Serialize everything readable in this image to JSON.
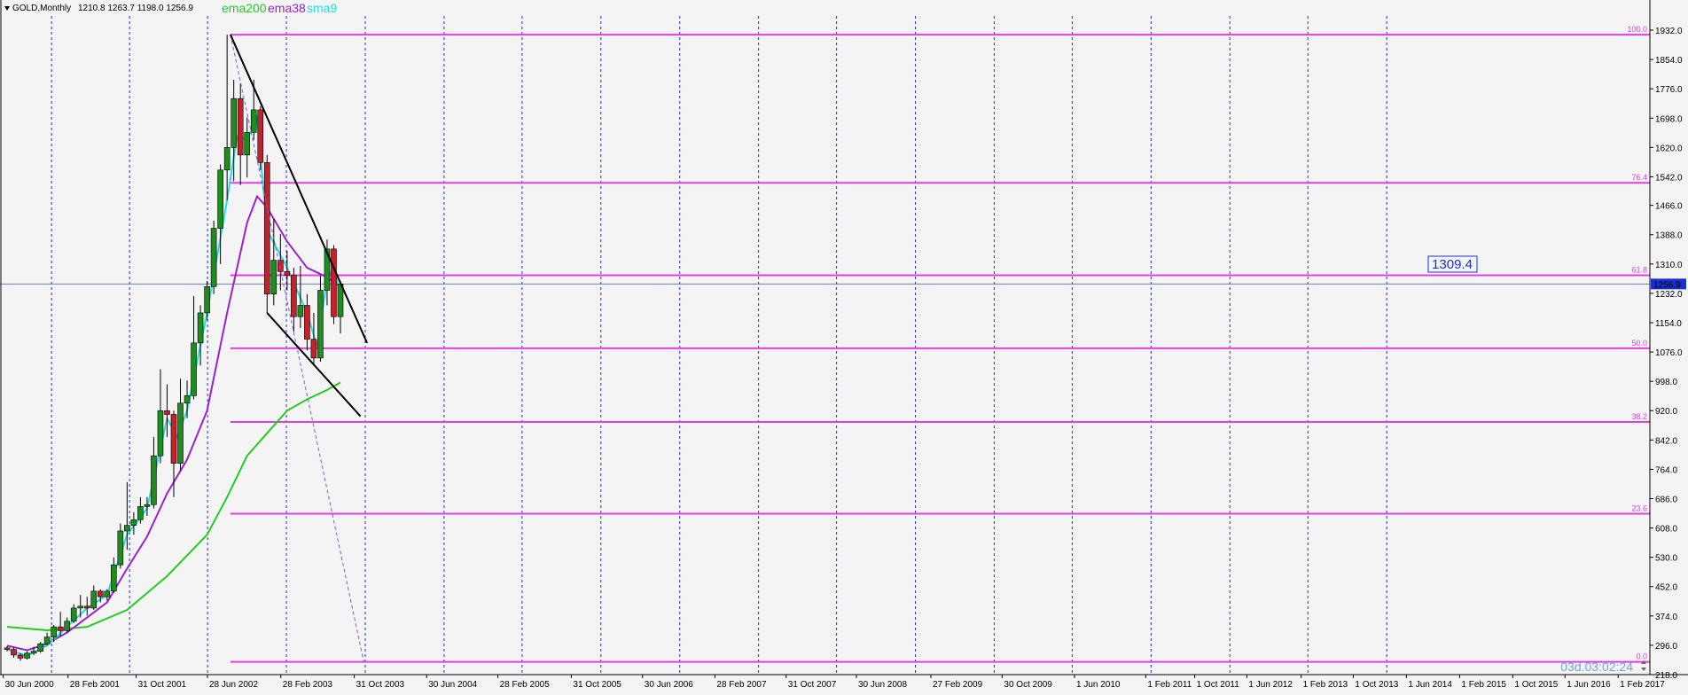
{
  "chart_data": {
    "type": "candlestick",
    "title": "GOLD,Monthly",
    "ohlc_text": "1210.8 1263.7 1198.0 1256.9",
    "legend": [
      {
        "name": "ema200",
        "color": "#22cc22"
      },
      {
        "name": "ema38",
        "color": "#9922cc"
      },
      {
        "name": "sma9",
        "color": "#22dddd"
      }
    ],
    "up_color": "#1e8c1e",
    "down_color": "#c8202a",
    "ylim": [
      218.0,
      1932.0
    ],
    "y_ticks": [
      "1932.0",
      "1854.0",
      "1776.0",
      "1698.0",
      "1620.0",
      "1542.0",
      "1466.0",
      "1388.0",
      "1310.0",
      "1232.0",
      "1154.0",
      "1076.0",
      "998.0",
      "920.0",
      "842.0",
      "764.0",
      "686.0",
      "608.0",
      "530.0",
      "452.0",
      "374.0",
      "296.0",
      "218.0"
    ],
    "x_ticks": [
      "30 Jun 2000",
      "28 Feb 2001",
      "31 Oct 2001",
      "28 Jun 2002",
      "28 Feb 2003",
      "31 Oct 2003",
      "30 Jun 2004",
      "28 Feb 2005",
      "31 Oct 2005",
      "30 Jun 2006",
      "28 Feb 2007",
      "31 Oct 2007",
      "30 Jun 2008",
      "27 Feb 2009",
      "30 Oct 2009",
      "1 Jun 2010",
      "1 Feb 2011",
      "1 Oct 2011",
      "1 Jun 2012",
      "1 Feb 2013",
      "1 Oct 2013",
      "1 Jun 2014",
      "1 Feb 2015",
      "1 Oct 2015",
      "1 Jun 2016",
      "1 Feb 2017"
    ],
    "fib_levels": [
      {
        "label": "100.0",
        "price": 1920
      },
      {
        "label": "76.4",
        "price": 1526
      },
      {
        "label": "61.8",
        "price": 1280
      },
      {
        "label": "50.0",
        "price": 1086
      },
      {
        "label": "38.2",
        "price": 890
      },
      {
        "label": "23.6",
        "price": 646
      },
      {
        "label": "0.0",
        "price": 252
      }
    ],
    "fib_color": "#e040e0",
    "current_price": "1256.9",
    "current_price_value": 1256.9,
    "callout_text": "1309.4",
    "timer_text": "03d.03:02:24",
    "trendlines": [
      {
        "x1": "2011-08",
        "y1": 1920,
        "x2": "2018-06",
        "y2": 1100
      },
      {
        "x1": "2013-06",
        "y1": 1180,
        "x2": "2018-02",
        "y2": 905
      }
    ],
    "fib_line": {
      "x1": "2011-08",
      "y1": 1920,
      "x2": "2018-04",
      "y2": 252
    },
    "grid": true,
    "candles": [
      {
        "t": "2000-06",
        "o": 289,
        "h": 294,
        "l": 280,
        "c": 285
      },
      {
        "t": "2000-10",
        "o": 285,
        "h": 290,
        "l": 263,
        "c": 270
      },
      {
        "t": "2001-02",
        "o": 270,
        "h": 275,
        "l": 255,
        "c": 262
      },
      {
        "t": "2001-06",
        "o": 262,
        "h": 280,
        "l": 258,
        "c": 275
      },
      {
        "t": "2001-10",
        "o": 275,
        "h": 292,
        "l": 270,
        "c": 280
      },
      {
        "t": "2002-02",
        "o": 280,
        "h": 305,
        "l": 276,
        "c": 300
      },
      {
        "t": "2002-06",
        "o": 300,
        "h": 330,
        "l": 296,
        "c": 318
      },
      {
        "t": "2002-10",
        "o": 318,
        "h": 350,
        "l": 305,
        "c": 345
      },
      {
        "t": "2003-02",
        "o": 345,
        "h": 385,
        "l": 320,
        "c": 335
      },
      {
        "t": "2003-06",
        "o": 335,
        "h": 370,
        "l": 330,
        "c": 360
      },
      {
        "t": "2003-10",
        "o": 360,
        "h": 405,
        "l": 355,
        "c": 395
      },
      {
        "t": "2004-02",
        "o": 395,
        "h": 430,
        "l": 370,
        "c": 400
      },
      {
        "t": "2004-06",
        "o": 400,
        "h": 425,
        "l": 375,
        "c": 395
      },
      {
        "t": "2004-10",
        "o": 395,
        "h": 455,
        "l": 390,
        "c": 440
      },
      {
        "t": "2005-02",
        "o": 440,
        "h": 445,
        "l": 410,
        "c": 425
      },
      {
        "t": "2005-06",
        "o": 425,
        "h": 445,
        "l": 415,
        "c": 440
      },
      {
        "t": "2005-10",
        "o": 440,
        "h": 530,
        "l": 435,
        "c": 510
      },
      {
        "t": "2006-02",
        "o": 510,
        "h": 620,
        "l": 500,
        "c": 600
      },
      {
        "t": "2006-06",
        "o": 600,
        "h": 730,
        "l": 550,
        "c": 615
      },
      {
        "t": "2006-10",
        "o": 615,
        "h": 650,
        "l": 590,
        "c": 630
      },
      {
        "t": "2007-02",
        "o": 630,
        "h": 690,
        "l": 620,
        "c": 665
      },
      {
        "t": "2007-06",
        "o": 665,
        "h": 690,
        "l": 640,
        "c": 670
      },
      {
        "t": "2007-10",
        "o": 670,
        "h": 850,
        "l": 660,
        "c": 800
      },
      {
        "t": "2008-02",
        "o": 800,
        "h": 1030,
        "l": 780,
        "c": 920
      },
      {
        "t": "2008-06",
        "o": 920,
        "h": 990,
        "l": 850,
        "c": 910
      },
      {
        "t": "2008-10",
        "o": 910,
        "h": 920,
        "l": 690,
        "c": 780
      },
      {
        "t": "2009-02",
        "o": 780,
        "h": 1005,
        "l": 760,
        "c": 940
      },
      {
        "t": "2009-06",
        "o": 940,
        "h": 1000,
        "l": 900,
        "c": 960
      },
      {
        "t": "2009-10",
        "o": 960,
        "h": 1225,
        "l": 950,
        "c": 1100
      },
      {
        "t": "2010-02",
        "o": 1100,
        "h": 1200,
        "l": 1040,
        "c": 1180
      },
      {
        "t": "2010-06",
        "o": 1180,
        "h": 1265,
        "l": 1160,
        "c": 1250
      },
      {
        "t": "2010-10",
        "o": 1250,
        "h": 1425,
        "l": 1230,
        "c": 1405
      },
      {
        "t": "2011-02",
        "o": 1405,
        "h": 1575,
        "l": 1310,
        "c": 1560
      },
      {
        "t": "2011-06",
        "o": 1560,
        "h": 1920,
        "l": 1480,
        "c": 1620
      },
      {
        "t": "2011-10",
        "o": 1620,
        "h": 1800,
        "l": 1530,
        "c": 1750
      },
      {
        "t": "2012-02",
        "o": 1750,
        "h": 1790,
        "l": 1520,
        "c": 1600
      },
      {
        "t": "2012-06",
        "o": 1600,
        "h": 1700,
        "l": 1540,
        "c": 1660
      },
      {
        "t": "2012-10",
        "o": 1660,
        "h": 1800,
        "l": 1640,
        "c": 1720
      },
      {
        "t": "2013-02",
        "o": 1720,
        "h": 1730,
        "l": 1560,
        "c": 1580
      },
      {
        "t": "2013-06",
        "o": 1580,
        "h": 1600,
        "l": 1180,
        "c": 1230
      },
      {
        "t": "2013-10",
        "o": 1230,
        "h": 1430,
        "l": 1200,
        "c": 1320
      },
      {
        "t": "2014-02",
        "o": 1320,
        "h": 1390,
        "l": 1240,
        "c": 1290
      },
      {
        "t": "2014-06",
        "o": 1290,
        "h": 1345,
        "l": 1240,
        "c": 1280
      },
      {
        "t": "2014-10",
        "o": 1280,
        "h": 1300,
        "l": 1130,
        "c": 1170
      },
      {
        "t": "2015-02",
        "o": 1170,
        "h": 1305,
        "l": 1140,
        "c": 1200
      },
      {
        "t": "2015-06",
        "o": 1200,
        "h": 1230,
        "l": 1080,
        "c": 1110
      },
      {
        "t": "2015-10",
        "o": 1110,
        "h": 1180,
        "l": 1045,
        "c": 1060
      },
      {
        "t": "2016-02",
        "o": 1060,
        "h": 1280,
        "l": 1050,
        "c": 1240
      },
      {
        "t": "2016-06",
        "o": 1240,
        "h": 1375,
        "l": 1200,
        "c": 1350
      },
      {
        "t": "2016-10",
        "o": 1350,
        "h": 1360,
        "l": 1150,
        "c": 1170
      },
      {
        "t": "2017-02",
        "o": 1170,
        "h": 1265,
        "l": 1125,
        "c": 1257
      }
    ],
    "ema200": [
      {
        "t": "2000-06",
        "v": 345
      },
      {
        "t": "2002-06",
        "v": 336
      },
      {
        "t": "2004-06",
        "v": 345
      },
      {
        "t": "2006-06",
        "v": 390
      },
      {
        "t": "2008-06",
        "v": 480
      },
      {
        "t": "2010-06",
        "v": 590
      },
      {
        "t": "2011-06",
        "v": 690
      },
      {
        "t": "2012-06",
        "v": 800
      },
      {
        "t": "2013-06",
        "v": 860
      },
      {
        "t": "2014-06",
        "v": 920
      },
      {
        "t": "2015-06",
        "v": 950
      },
      {
        "t": "2016-06",
        "v": 975
      },
      {
        "t": "2017-02",
        "v": 995
      }
    ],
    "ema38": [
      {
        "t": "2000-06",
        "v": 295
      },
      {
        "t": "2001-06",
        "v": 283
      },
      {
        "t": "2002-06",
        "v": 300
      },
      {
        "t": "2003-06",
        "v": 330
      },
      {
        "t": "2004-06",
        "v": 370
      },
      {
        "t": "2005-06",
        "v": 410
      },
      {
        "t": "2006-06",
        "v": 500
      },
      {
        "t": "2007-06",
        "v": 585
      },
      {
        "t": "2008-06",
        "v": 700
      },
      {
        "t": "2009-06",
        "v": 790
      },
      {
        "t": "2010-06",
        "v": 920
      },
      {
        "t": "2011-06",
        "v": 1180
      },
      {
        "t": "2012-06",
        "v": 1420
      },
      {
        "t": "2012-12",
        "v": 1490
      },
      {
        "t": "2013-06",
        "v": 1460
      },
      {
        "t": "2014-06",
        "v": 1370
      },
      {
        "t": "2015-06",
        "v": 1300
      },
      {
        "t": "2016-06",
        "v": 1275
      },
      {
        "t": "2017-02",
        "v": 1250
      }
    ],
    "sma9": [
      {
        "t": "2000-06",
        "v": 285
      },
      {
        "t": "2001-06",
        "v": 268
      },
      {
        "t": "2002-06",
        "v": 295
      },
      {
        "t": "2003-06",
        "v": 345
      },
      {
        "t": "2004-06",
        "v": 395
      },
      {
        "t": "2005-06",
        "v": 430
      },
      {
        "t": "2006-06",
        "v": 590
      },
      {
        "t": "2007-06",
        "v": 660
      },
      {
        "t": "2008-06",
        "v": 900
      },
      {
        "t": "2008-12",
        "v": 850
      },
      {
        "t": "2009-06",
        "v": 920
      },
      {
        "t": "2010-06",
        "v": 1180
      },
      {
        "t": "2011-06",
        "v": 1480
      },
      {
        "t": "2011-12",
        "v": 1650
      },
      {
        "t": "2012-06",
        "v": 1640
      },
      {
        "t": "2012-12",
        "v": 1700
      },
      {
        "t": "2013-06",
        "v": 1400
      },
      {
        "t": "2014-06",
        "v": 1300
      },
      {
        "t": "2015-06",
        "v": 1180
      },
      {
        "t": "2015-12",
        "v": 1090
      },
      {
        "t": "2016-06",
        "v": 1270
      },
      {
        "t": "2016-10",
        "v": 1300
      },
      {
        "t": "2017-02",
        "v": 1230
      }
    ]
  }
}
